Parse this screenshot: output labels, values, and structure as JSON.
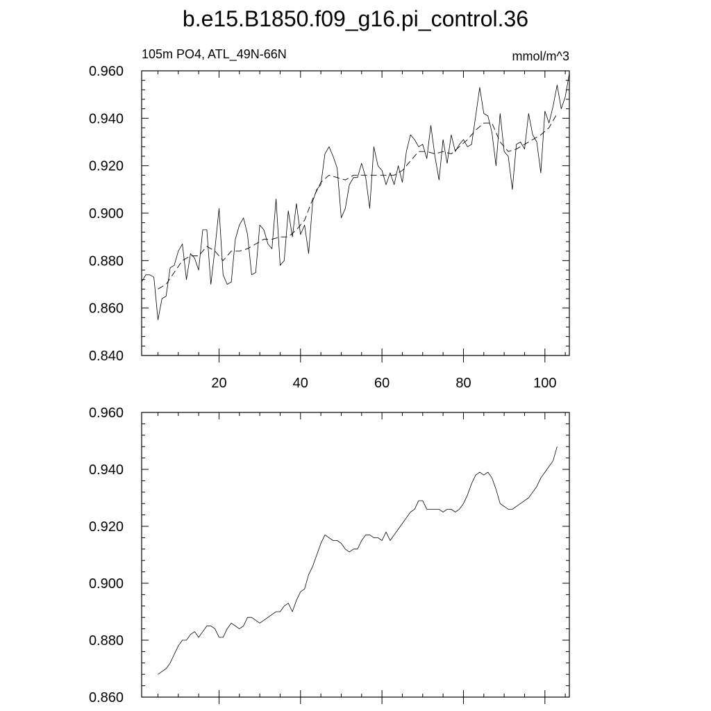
{
  "title": "b.e15.B1850.f09_g16.pi_control.36",
  "colors": {
    "line": "#000000",
    "background": "#ffffff"
  },
  "chart_data": [
    {
      "type": "line",
      "left_label": "105m PO4, ATL_49N-66N",
      "right_label": "mmol/m^3",
      "xlim": [
        1,
        106
      ],
      "ylim": [
        0.84,
        0.96
      ],
      "xticks": [
        20,
        40,
        60,
        80,
        100
      ],
      "xtick_labels": [
        "20",
        "40",
        "60",
        "80",
        "100"
      ],
      "yticks": [
        0.84,
        0.86,
        0.88,
        0.9,
        0.92,
        0.94,
        0.96
      ],
      "ytick_labels": [
        "0.840",
        "0.860",
        "0.880",
        "0.900",
        "0.920",
        "0.940",
        "0.960"
      ],
      "grid": false,
      "series": [
        {
          "style": "solid",
          "x": [
            1,
            2,
            3,
            4,
            5,
            6,
            7,
            8,
            9,
            10,
            11,
            12,
            13,
            14,
            15,
            16,
            17,
            18,
            19,
            20,
            21,
            22,
            23,
            24,
            25,
            26,
            27,
            28,
            29,
            30,
            31,
            32,
            33,
            34,
            35,
            36,
            37,
            38,
            39,
            40,
            41,
            42,
            43,
            44,
            45,
            46,
            47,
            48,
            49,
            50,
            51,
            52,
            53,
            54,
            55,
            56,
            57,
            58,
            59,
            60,
            61,
            62,
            63,
            64,
            65,
            66,
            67,
            68,
            69,
            70,
            71,
            72,
            73,
            74,
            75,
            76,
            77,
            78,
            79,
            80,
            81,
            82,
            83,
            84,
            85,
            86,
            87,
            88,
            89,
            90,
            91,
            92,
            93,
            94,
            95,
            96,
            97,
            98,
            99,
            100,
            101,
            102,
            103,
            104,
            105,
            106
          ],
          "values": [
            0.871,
            0.874,
            0.874,
            0.873,
            0.855,
            0.864,
            0.865,
            0.877,
            0.878,
            0.884,
            0.887,
            0.872,
            0.883,
            0.881,
            0.876,
            0.893,
            0.893,
            0.87,
            0.885,
            0.902,
            0.874,
            0.87,
            0.871,
            0.889,
            0.895,
            0.898,
            0.891,
            0.874,
            0.875,
            0.895,
            0.893,
            0.887,
            0.885,
            0.906,
            0.878,
            0.88,
            0.901,
            0.89,
            0.904,
            0.891,
            0.895,
            0.883,
            0.905,
            0.91,
            0.912,
            0.925,
            0.928,
            0.924,
            0.919,
            0.898,
            0.902,
            0.912,
            0.915,
            0.915,
            0.921,
            0.915,
            0.902,
            0.928,
            0.92,
            0.918,
            0.912,
            0.917,
            0.912,
            0.92,
            0.913,
            0.926,
            0.933,
            0.931,
            0.928,
            0.929,
            0.923,
            0.937,
            0.924,
            0.914,
            0.931,
            0.921,
            0.933,
            0.926,
            0.929,
            0.931,
            0.928,
            0.929,
            0.941,
            0.953,
            0.942,
            0.941,
            0.934,
            0.92,
            0.942,
            0.926,
            0.924,
            0.91,
            0.929,
            0.93,
            0.927,
            0.942,
            0.933,
            0.93,
            0.917,
            0.943,
            0.938,
            0.945,
            0.954,
            0.944,
            0.949,
            0.959
          ]
        },
        {
          "style": "dashed",
          "x": [
            5,
            7,
            9,
            11,
            13,
            15,
            17,
            19,
            21,
            23,
            25,
            27,
            29,
            31,
            33,
            35,
            37,
            39,
            41,
            43,
            45,
            47,
            49,
            51,
            53,
            55,
            57,
            59,
            61,
            63,
            65,
            67,
            69,
            71,
            73,
            75,
            77,
            79,
            81,
            83,
            85,
            87,
            89,
            91,
            93,
            95,
            97,
            99,
            101,
            103
          ],
          "values": [
            0.868,
            0.87,
            0.875,
            0.88,
            0.882,
            0.882,
            0.886,
            0.884,
            0.88,
            0.884,
            0.884,
            0.885,
            0.887,
            0.889,
            0.889,
            0.89,
            0.89,
            0.893,
            0.897,
            0.906,
            0.913,
            0.916,
            0.915,
            0.914,
            0.916,
            0.916,
            0.916,
            0.916,
            0.916,
            0.916,
            0.918,
            0.922,
            0.926,
            0.926,
            0.925,
            0.926,
            0.925,
            0.928,
            0.931,
            0.935,
            0.938,
            0.938,
            0.93,
            0.926,
            0.927,
            0.929,
            0.931,
            0.933,
            0.936,
            0.942
          ]
        }
      ]
    },
    {
      "type": "line",
      "xlim": [
        1,
        106
      ],
      "ylim": [
        0.86,
        0.96
      ],
      "xticks": [
        20,
        40,
        60,
        80,
        100
      ],
      "yticks": [
        0.86,
        0.88,
        0.9,
        0.92,
        0.94,
        0.96
      ],
      "ytick_labels": [
        "0.860",
        "0.880",
        "0.900",
        "0.920",
        "0.940",
        "0.960"
      ],
      "grid": false,
      "series": [
        {
          "style": "solid",
          "x": [
            5,
            6,
            7,
            8,
            9,
            10,
            11,
            12,
            13,
            14,
            15,
            16,
            17,
            18,
            19,
            20,
            21,
            22,
            23,
            24,
            25,
            26,
            27,
            28,
            29,
            30,
            31,
            32,
            33,
            34,
            35,
            36,
            37,
            38,
            39,
            40,
            41,
            42,
            43,
            44,
            45,
            46,
            47,
            48,
            49,
            50,
            51,
            52,
            53,
            54,
            55,
            56,
            57,
            58,
            59,
            60,
            61,
            62,
            63,
            64,
            65,
            66,
            67,
            68,
            69,
            70,
            71,
            72,
            73,
            74,
            75,
            76,
            77,
            78,
            79,
            80,
            81,
            82,
            83,
            84,
            85,
            86,
            87,
            88,
            89,
            90,
            91,
            92,
            93,
            94,
            95,
            96,
            97,
            98,
            99,
            100,
            101,
            102,
            103
          ],
          "values": [
            0.868,
            0.869,
            0.87,
            0.872,
            0.875,
            0.878,
            0.88,
            0.88,
            0.882,
            0.883,
            0.881,
            0.883,
            0.885,
            0.885,
            0.884,
            0.881,
            0.881,
            0.884,
            0.886,
            0.885,
            0.884,
            0.885,
            0.888,
            0.888,
            0.887,
            0.886,
            0.887,
            0.888,
            0.889,
            0.89,
            0.89,
            0.892,
            0.893,
            0.89,
            0.894,
            0.897,
            0.898,
            0.903,
            0.906,
            0.91,
            0.914,
            0.917,
            0.916,
            0.915,
            0.915,
            0.914,
            0.912,
            0.911,
            0.912,
            0.912,
            0.915,
            0.917,
            0.917,
            0.916,
            0.916,
            0.915,
            0.918,
            0.915,
            0.917,
            0.919,
            0.921,
            0.923,
            0.925,
            0.926,
            0.929,
            0.929,
            0.926,
            0.926,
            0.926,
            0.926,
            0.925,
            0.926,
            0.926,
            0.925,
            0.926,
            0.928,
            0.931,
            0.935,
            0.938,
            0.939,
            0.938,
            0.939,
            0.937,
            0.933,
            0.928,
            0.927,
            0.926,
            0.926,
            0.927,
            0.928,
            0.929,
            0.93,
            0.932,
            0.934,
            0.937,
            0.939,
            0.941,
            0.943,
            0.948
          ]
        }
      ]
    }
  ]
}
